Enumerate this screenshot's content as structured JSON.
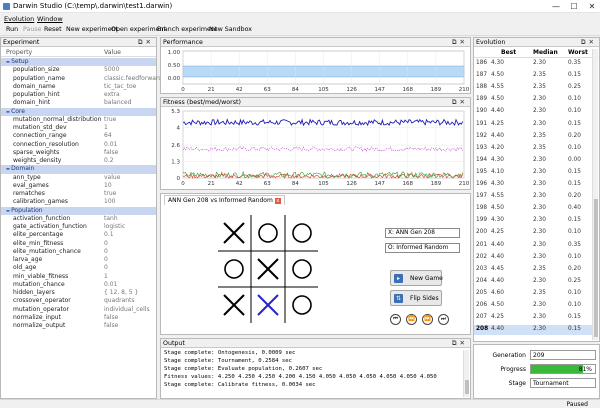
{
  "window": {
    "title": "Darwin Studio (C:\\temp\\.darwin\\test1.darwin)",
    "minimize": "—",
    "maximize": "☐",
    "close": "✕"
  },
  "menu": [
    "Evolution",
    "Window"
  ],
  "toolbar": {
    "run": "Run",
    "pause": "Pause",
    "reset": "Reset",
    "new_experiment": "New experiment",
    "open_experiment": "Open experiment",
    "branch_experiment": "Branch experiment",
    "new_sandbox": "New Sandbox"
  },
  "experiment": {
    "title": "Experiment",
    "headers": {
      "property": "Property",
      "value": "Value"
    },
    "rows": [
      {
        "k": "Setup",
        "section": true
      },
      {
        "k": "population_size",
        "v": "5000"
      },
      {
        "k": "population_name",
        "v": "classic.feedforward"
      },
      {
        "k": "domain_name",
        "v": "tic_tac_toe"
      },
      {
        "k": "population_hint",
        "v": "extra"
      },
      {
        "k": "domain_hint",
        "v": "balanced"
      },
      {
        "k": "Core",
        "section": true
      },
      {
        "k": "mutation_normal_distribution",
        "v": "true"
      },
      {
        "k": "mutation_std_dev",
        "v": "1"
      },
      {
        "k": "connection_range",
        "v": "64"
      },
      {
        "k": "connection_resolution",
        "v": "0.01"
      },
      {
        "k": "sparse_weights",
        "v": "false"
      },
      {
        "k": "weights_density",
        "v": "0.2"
      },
      {
        "k": "Domain",
        "section": true
      },
      {
        "k": "ann_type",
        "v": "value"
      },
      {
        "k": "eval_games",
        "v": "10"
      },
      {
        "k": "rematches",
        "v": "true"
      },
      {
        "k": "calibration_games",
        "v": "100"
      },
      {
        "k": "Population",
        "section": true
      },
      {
        "k": "activation_function",
        "v": "tanh"
      },
      {
        "k": "gate_activation_function",
        "v": "logistic"
      },
      {
        "k": "elite_percentage",
        "v": "0.1"
      },
      {
        "k": "elite_min_fitness",
        "v": "0"
      },
      {
        "k": "elite_mutation_chance",
        "v": "0"
      },
      {
        "k": "larva_age",
        "v": "0"
      },
      {
        "k": "old_age",
        "v": "0"
      },
      {
        "k": "min_viable_fitness",
        "v": "1"
      },
      {
        "k": "mutation_chance",
        "v": "0.01"
      },
      {
        "k": "hidden_layers",
        "v": "{ 12, 8, 5 }"
      },
      {
        "k": "crossover_operator",
        "v": "quadrants"
      },
      {
        "k": "mutation_operator",
        "v": "individual_cells"
      },
      {
        "k": "normalize_input",
        "v": "false"
      },
      {
        "k": "normalize_output",
        "v": "false"
      }
    ]
  },
  "performance": {
    "title": "Performance",
    "y_ticks": [
      "1.00",
      "0.50",
      "0.00"
    ],
    "x_ticks": [
      "0",
      "21",
      "42",
      "63",
      "84",
      "105",
      "126",
      "147",
      "168",
      "189",
      "210"
    ]
  },
  "fitness": {
    "title": "Fitness (best/med/worst)",
    "y_ticks": [
      "5.3",
      "4",
      "2.6",
      "1.3",
      "0"
    ],
    "x_ticks": [
      "0",
      "21",
      "42",
      "63",
      "84",
      "105",
      "126",
      "147",
      "168",
      "189",
      "210"
    ]
  },
  "game": {
    "tab": "ANN Gen 208 vs Informed Random",
    "tab_close": "x",
    "board": [
      "X",
      "O",
      "O",
      "O",
      "X",
      "O",
      "X",
      "X",
      "O"
    ],
    "player_x": "X: ANN Gen 208",
    "player_o": "O: Informed Random",
    "new_game": "New Game",
    "flip_sides": "Flip Sides",
    "nav": [
      "⏮",
      "⏪",
      "⏩",
      "⏭"
    ]
  },
  "output": {
    "title": "Output",
    "lines": [
      "Stage complete: Ontogenesis, 0.0009 sec",
      "Stage complete: Tournament, 0.2584 sec",
      "Stage complete: Evaluate population, 0.2607 sec",
      "Fitness values: 4.250 4.250 4.250 4.200 4.150 4.050 4.050 4.050 4.050 4.050 4.050",
      "Stage complete: Calibrate fitness, 0.0034 sec"
    ]
  },
  "evolution": {
    "title": "Evolution",
    "headers": {
      "best": "Best",
      "median": "Median",
      "worst": "Worst"
    },
    "rows": [
      {
        "g": "186",
        "b": "4.30",
        "m": "2.30",
        "w": "0.35"
      },
      {
        "g": "187",
        "b": "4.50",
        "m": "2.35",
        "w": "0.15"
      },
      {
        "g": "188",
        "b": "4.55",
        "m": "2.35",
        "w": "0.25"
      },
      {
        "g": "189",
        "b": "4.50",
        "m": "2.30",
        "w": "0.10"
      },
      {
        "g": "190",
        "b": "4.40",
        "m": "2.30",
        "w": "0.10"
      },
      {
        "g": "191",
        "b": "4.25",
        "m": "2.30",
        "w": "0.15"
      },
      {
        "g": "192",
        "b": "4.40",
        "m": "2.35",
        "w": "0.20"
      },
      {
        "g": "193",
        "b": "4.20",
        "m": "2.35",
        "w": "0.10"
      },
      {
        "g": "194",
        "b": "4.30",
        "m": "2.30",
        "w": "0.00"
      },
      {
        "g": "195",
        "b": "4.10",
        "m": "2.30",
        "w": "0.15"
      },
      {
        "g": "196",
        "b": "4.30",
        "m": "2.30",
        "w": "0.15"
      },
      {
        "g": "197",
        "b": "4.55",
        "m": "2.30",
        "w": "0.20"
      },
      {
        "g": "198",
        "b": "4.50",
        "m": "2.30",
        "w": "0.40"
      },
      {
        "g": "199",
        "b": "4.30",
        "m": "2.30",
        "w": "0.15"
      },
      {
        "g": "200",
        "b": "4.25",
        "m": "2.30",
        "w": "0.10"
      },
      {
        "g": "201",
        "b": "4.40",
        "m": "2.30",
        "w": "0.35"
      },
      {
        "g": "202",
        "b": "4.40",
        "m": "2.30",
        "w": "0.10"
      },
      {
        "g": "203",
        "b": "4.45",
        "m": "2.35",
        "w": "0.20"
      },
      {
        "g": "204",
        "b": "4.40",
        "m": "2.30",
        "w": "0.25"
      },
      {
        "g": "205",
        "b": "4.60",
        "m": "2.35",
        "w": "0.10"
      },
      {
        "g": "206",
        "b": "4.50",
        "m": "2.30",
        "w": "0.10"
      },
      {
        "g": "207",
        "b": "4.25",
        "m": "2.30",
        "w": "0.15"
      },
      {
        "g": "208",
        "b": "4.40",
        "m": "2.30",
        "w": "0.15"
      }
    ]
  },
  "status": {
    "generation_label": "Generation",
    "generation": "209",
    "progress_label": "Progress",
    "progress": 0.81,
    "progress_text": "81%",
    "stage_label": "Stage",
    "stage": "Tournament"
  },
  "statusbar": {
    "state": "Paused"
  },
  "colors": {
    "accent": "#3b6fb6",
    "best": "#1f1fb8",
    "median": "#c24fd0",
    "worst_a": "#2f9e2f",
    "worst_b": "#d23a2a",
    "perf_fill": "#b9daf7",
    "progress": "#39b83a",
    "section": "#c9d6f2"
  }
}
